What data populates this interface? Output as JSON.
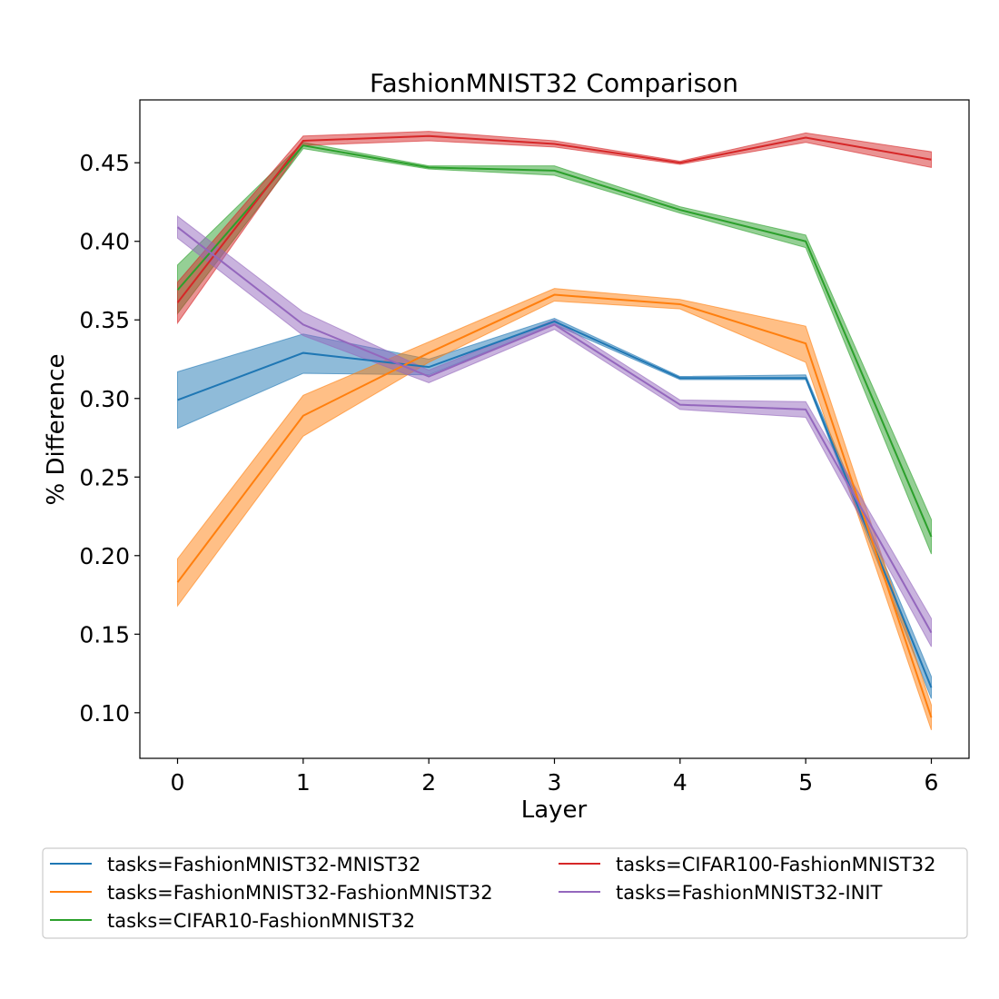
{
  "chart_data": {
    "type": "line",
    "title": "FashionMNIST32 Comparison",
    "xlabel": "Layer",
    "ylabel": "% Difference",
    "x": [
      0,
      1,
      2,
      3,
      4,
      5,
      6
    ],
    "xlim": [
      -0.3,
      6.3
    ],
    "ylim": [
      0.071,
      0.49
    ],
    "xticks": [
      "0",
      "1",
      "2",
      "3",
      "4",
      "5",
      "6"
    ],
    "yticks": [
      0.1,
      0.15,
      0.2,
      0.25,
      0.3,
      0.35,
      0.4,
      0.45
    ],
    "ytick_labels": [
      "0.10",
      "0.15",
      "0.20",
      "0.25",
      "0.30",
      "0.35",
      "0.40",
      "0.45"
    ],
    "grid": false,
    "legend_placement": "below-plot",
    "series": [
      {
        "name": "tasks=FashionMNIST32-MNIST32",
        "color": "#1f77b4",
        "values": [
          0.299,
          0.329,
          0.32,
          0.349,
          0.313,
          0.313,
          0.116
        ],
        "lower": [
          0.281,
          0.316,
          0.315,
          0.347,
          0.312,
          0.312,
          0.109
        ],
        "upper": [
          0.317,
          0.341,
          0.325,
          0.351,
          0.314,
          0.315,
          0.123
        ]
      },
      {
        "name": "tasks=FashionMNIST32-FashionMNIST32",
        "color": "#ff7f0e",
        "values": [
          0.183,
          0.289,
          0.329,
          0.366,
          0.36,
          0.335,
          0.097
        ],
        "lower": [
          0.168,
          0.276,
          0.323,
          0.362,
          0.357,
          0.323,
          0.089
        ],
        "upper": [
          0.198,
          0.302,
          0.336,
          0.37,
          0.363,
          0.346,
          0.105
        ]
      },
      {
        "name": "tasks=CIFAR10-FashionMNIST32",
        "color": "#2ca02c",
        "values": [
          0.369,
          0.461,
          0.447,
          0.445,
          0.42,
          0.4,
          0.212
        ],
        "lower": [
          0.354,
          0.459,
          0.446,
          0.442,
          0.418,
          0.396,
          0.201
        ],
        "upper": [
          0.385,
          0.463,
          0.448,
          0.448,
          0.422,
          0.404,
          0.223
        ]
      },
      {
        "name": "tasks=CIFAR100-FashionMNIST32",
        "color": "#d62728",
        "values": [
          0.361,
          0.464,
          0.467,
          0.462,
          0.45,
          0.466,
          0.452
        ],
        "lower": [
          0.348,
          0.461,
          0.464,
          0.46,
          0.449,
          0.463,
          0.447
        ],
        "upper": [
          0.374,
          0.467,
          0.47,
          0.464,
          0.451,
          0.469,
          0.457
        ]
      },
      {
        "name": "tasks=FashionMNIST32-INIT",
        "color": "#9467bd",
        "values": [
          0.409,
          0.347,
          0.314,
          0.347,
          0.296,
          0.293,
          0.151
        ],
        "lower": [
          0.402,
          0.34,
          0.31,
          0.344,
          0.293,
          0.288,
          0.142
        ],
        "upper": [
          0.416,
          0.355,
          0.318,
          0.35,
          0.299,
          0.298,
          0.16
        ]
      }
    ]
  }
}
